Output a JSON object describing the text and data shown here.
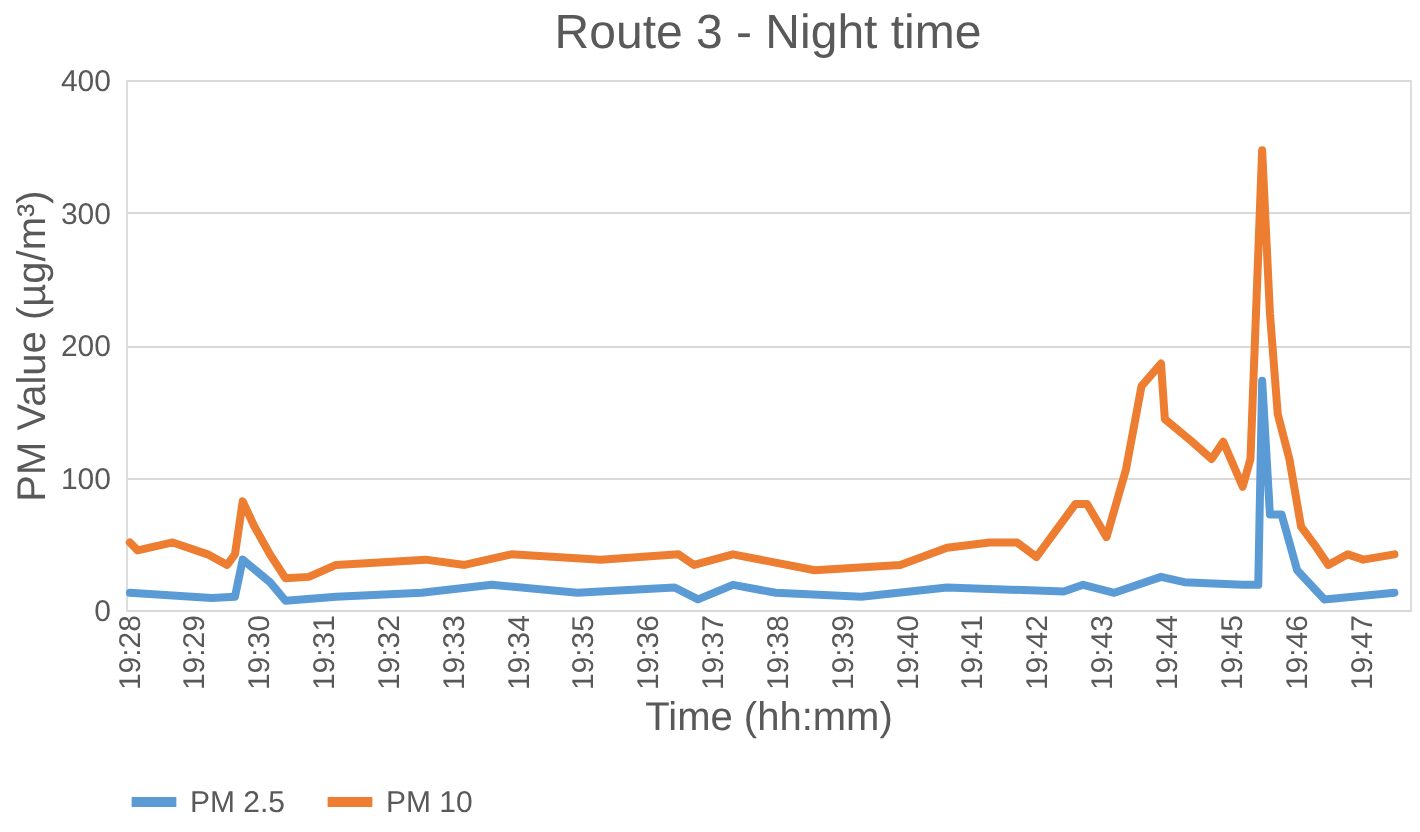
{
  "chart_data": {
    "type": "line",
    "title": "Route 3 - Night time",
    "xlabel": "Time (hh:mm)",
    "ylabel": "PM Value (µg/m³)",
    "xlim": [
      19.466,
      19.796
    ],
    "ylim": [
      0,
      400
    ],
    "yticks": [
      0,
      100,
      200,
      300,
      400
    ],
    "xticks": [
      {
        "value": 19.4667,
        "label": "19:28"
      },
      {
        "value": 19.4833,
        "label": "19:29"
      },
      {
        "value": 19.5,
        "label": "19:30"
      },
      {
        "value": 19.5167,
        "label": "19:31"
      },
      {
        "value": 19.5333,
        "label": "19:32"
      },
      {
        "value": 19.55,
        "label": "19:33"
      },
      {
        "value": 19.5667,
        "label": "19:34"
      },
      {
        "value": 19.5833,
        "label": "19:35"
      },
      {
        "value": 19.6,
        "label": "19:36"
      },
      {
        "value": 19.6167,
        "label": "19:37"
      },
      {
        "value": 19.6333,
        "label": "19:38"
      },
      {
        "value": 19.65,
        "label": "19:39"
      },
      {
        "value": 19.6667,
        "label": "19:40"
      },
      {
        "value": 19.6833,
        "label": "19:41"
      },
      {
        "value": 19.7,
        "label": "19:42"
      },
      {
        "value": 19.7167,
        "label": "19:43"
      },
      {
        "value": 19.7333,
        "label": "19:44"
      },
      {
        "value": 19.75,
        "label": "19:45"
      },
      {
        "value": 19.7667,
        "label": "19:46"
      },
      {
        "value": 19.7833,
        "label": "19:47"
      }
    ],
    "grid": "y",
    "legend": "bottom",
    "marker": "none",
    "line_style": "solid",
    "series": [
      {
        "name": "PM 2.5",
        "color": "#5b9bd5",
        "x": [
          19.467,
          19.488,
          19.494,
          19.496,
          19.503,
          19.507,
          19.52,
          19.542,
          19.56,
          19.582,
          19.607,
          19.613,
          19.622,
          19.633,
          19.655,
          19.677,
          19.707,
          19.712,
          19.72,
          19.732,
          19.738,
          19.753,
          19.757,
          19.758,
          19.76,
          19.763,
          19.767,
          19.774,
          19.792
        ],
        "values": [
          13,
          9,
          10,
          38,
          21,
          7,
          10,
          13,
          19,
          13,
          17,
          8,
          19,
          13,
          10,
          17,
          14,
          19,
          13,
          25,
          21,
          19,
          19,
          173,
          72,
          72,
          30,
          8,
          13
        ]
      },
      {
        "name": "PM 10",
        "color": "#ed7d31",
        "x": [
          19.467,
          19.469,
          19.478,
          19.487,
          19.492,
          19.494,
          19.496,
          19.499,
          19.503,
          19.507,
          19.513,
          19.52,
          19.543,
          19.553,
          19.565,
          19.588,
          19.608,
          19.612,
          19.622,
          19.643,
          19.665,
          19.677,
          19.688,
          19.695,
          19.7,
          19.71,
          19.713,
          19.718,
          19.723,
          19.727,
          19.732,
          19.733,
          19.74,
          19.745,
          19.748,
          19.753,
          19.755,
          19.758,
          19.76,
          19.762,
          19.765,
          19.768,
          19.772,
          19.775,
          19.78,
          19.784,
          19.792
        ],
        "values": [
          51,
          45,
          51,
          42,
          34,
          42,
          82,
          63,
          42,
          24,
          25,
          34,
          38,
          34,
          42,
          38,
          42,
          34,
          42,
          30,
          34,
          47,
          51,
          51,
          40,
          80,
          80,
          55,
          106,
          169,
          186,
          144,
          127,
          114,
          127,
          93,
          114,
          347,
          224,
          148,
          114,
          63,
          47,
          34,
          42,
          38,
          42
        ]
      }
    ]
  }
}
